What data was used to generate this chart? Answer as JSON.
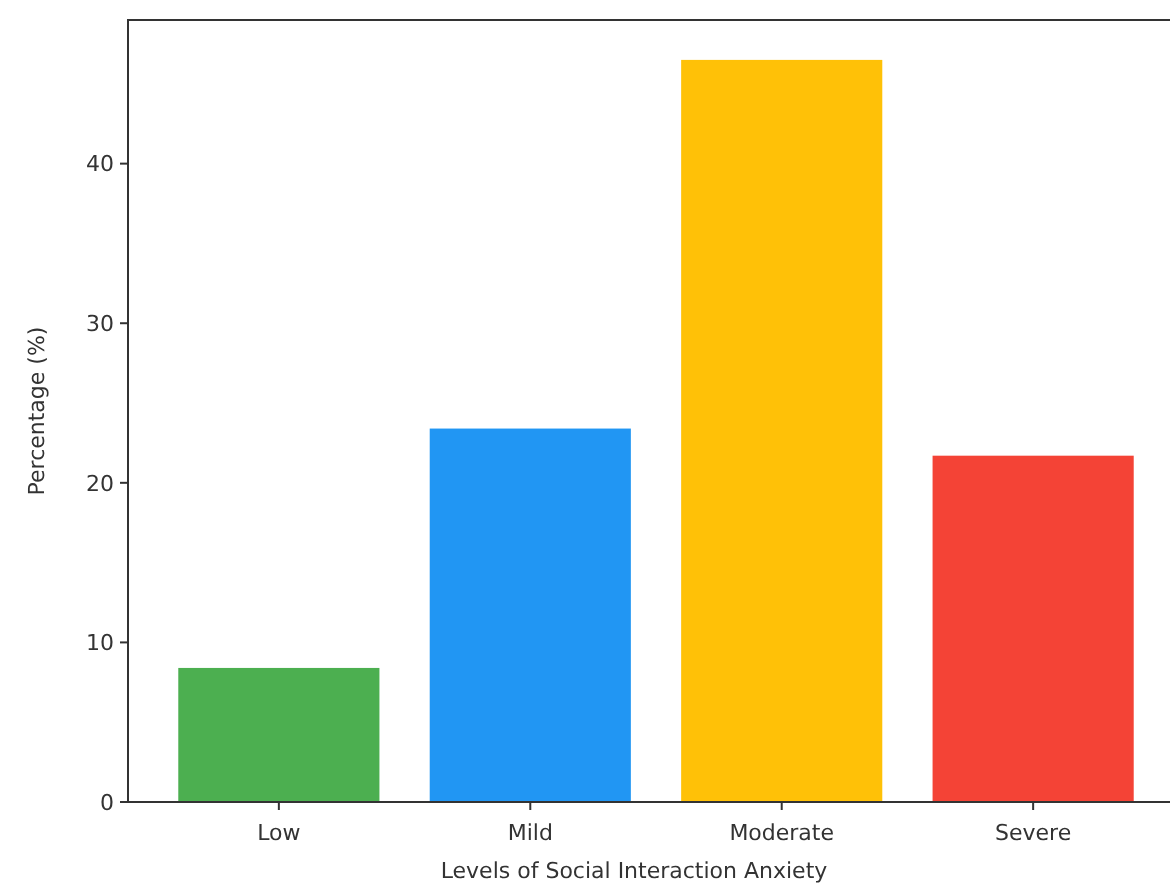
{
  "chart_data": {
    "type": "bar",
    "xlabel": "Levels of Social Interaction Anxiety",
    "ylabel": "Percentage (%)",
    "categories": [
      "Low",
      "Mild",
      "Moderate",
      "Severe"
    ],
    "values": [
      8.4,
      23.4,
      46.5,
      21.7
    ],
    "colors": [
      "#4caf50",
      "#2196f3",
      "#ffc107",
      "#f44336"
    ],
    "ylim": [
      0,
      49
    ],
    "yticks": [
      0,
      10,
      20,
      30,
      40
    ],
    "grid": false
  }
}
